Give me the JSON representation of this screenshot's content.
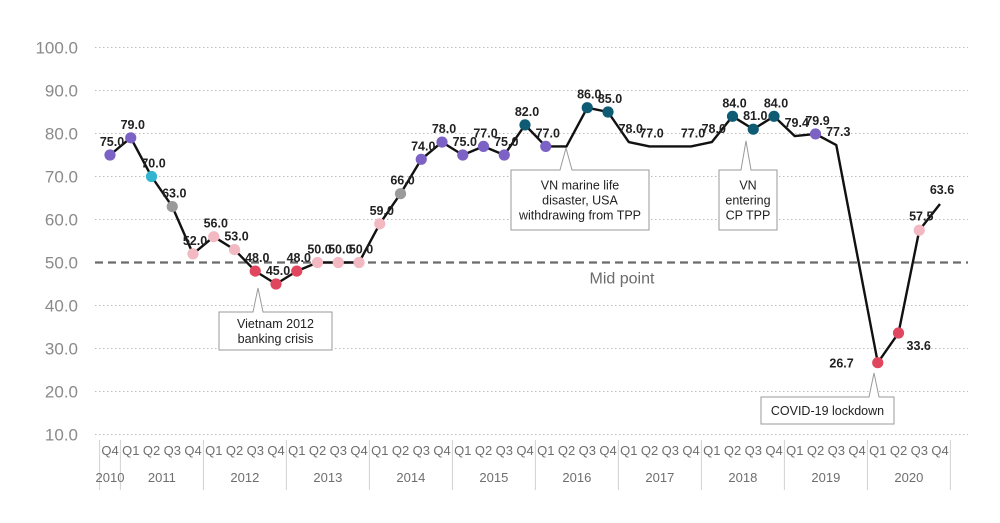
{
  "chart_data": {
    "type": "line",
    "ylim": [
      10,
      100
    ],
    "yticks": [
      "100.0",
      "90.0",
      "80.0",
      "70.0",
      "60.0",
      "50.0",
      "40.0",
      "30.0",
      "20.0",
      "10.0"
    ],
    "quarters": [
      "Q4",
      "Q1",
      "Q2",
      "Q3",
      "Q4",
      "Q1",
      "Q2",
      "Q3",
      "Q4",
      "Q1",
      "Q2",
      "Q3",
      "Q4",
      "Q1",
      "Q2",
      "Q3",
      "Q4",
      "Q1",
      "Q2",
      "Q3",
      "Q4",
      "Q1",
      "Q2",
      "Q3",
      "Q4",
      "Q1",
      "Q2",
      "Q3",
      "Q4",
      "Q1",
      "Q2",
      "Q3",
      "Q4",
      "Q1",
      "Q2",
      "Q3",
      "Q4",
      "Q1",
      "Q2",
      "Q3",
      "Q4"
    ],
    "years": [
      {
        "label": "2010",
        "start": 0,
        "end": 0
      },
      {
        "label": "2011",
        "start": 1,
        "end": 4
      },
      {
        "label": "2012",
        "start": 5,
        "end": 8
      },
      {
        "label": "2013",
        "start": 9,
        "end": 12
      },
      {
        "label": "2014",
        "start": 13,
        "end": 16
      },
      {
        "label": "2015",
        "start": 17,
        "end": 20
      },
      {
        "label": "2016",
        "start": 21,
        "end": 24
      },
      {
        "label": "2017",
        "start": 25,
        "end": 28
      },
      {
        "label": "2018",
        "start": 29,
        "end": 32
      },
      {
        "label": "2019",
        "start": 33,
        "end": 36
      },
      {
        "label": "2020",
        "start": 37,
        "end": 40
      }
    ],
    "values": [
      75.0,
      79.0,
      70.0,
      63.0,
      52.0,
      56.0,
      53.0,
      48.0,
      45.0,
      48.0,
      50.0,
      50.0,
      50.0,
      59.0,
      66.0,
      74.0,
      78.0,
      75.0,
      77.0,
      75.0,
      82.0,
      77.0,
      77.0,
      86.0,
      85.0,
      78.0,
      77.0,
      77.0,
      77.0,
      78.0,
      84.0,
      81.0,
      84.0,
      79.4,
      79.9,
      77.3,
      26.7,
      33.6,
      57.5,
      63.6
    ],
    "x_index": [
      0,
      1,
      2,
      3,
      4,
      5,
      6,
      7,
      8,
      9,
      10,
      11,
      12,
      13,
      14,
      15,
      16,
      17,
      18,
      19,
      20,
      21,
      22,
      23,
      24,
      25,
      26,
      27,
      28,
      29,
      30,
      31,
      32,
      33,
      34,
      35,
      37,
      38,
      39,
      40
    ],
    "labels": [
      "75.0",
      "79.0",
      "70.0",
      "63.0",
      "52.0",
      "56.0",
      "53.0",
      "48.0",
      "45.0",
      "48.0",
      "50.0",
      "50.0",
      "50.0",
      "59.0",
      "66.0",
      "74.0",
      "78.0",
      "75.0",
      "77.0",
      "75.0",
      "82.0",
      "77.0",
      "",
      "86.0",
      "85.0",
      "78.0",
      "77.0",
      "",
      "77.0",
      "78.0",
      "84.0",
      "81.0",
      "84.0",
      "79.4",
      "79.9",
      "77.3",
      "26.7",
      "33.6",
      "57.5",
      "63.6"
    ],
    "markers": [
      {
        "i": 0,
        "color": "#7b62c4"
      },
      {
        "i": 1,
        "color": "#7b62c4"
      },
      {
        "i": 2,
        "color": "#33b5d0"
      },
      {
        "i": 3,
        "color": "#9a9a9a"
      },
      {
        "i": 4,
        "color": "#f2b9c2"
      },
      {
        "i": 5,
        "color": "#f2b9c2"
      },
      {
        "i": 6,
        "color": "#f2b9c2"
      },
      {
        "i": 7,
        "color": "#e0475f"
      },
      {
        "i": 8,
        "color": "#e0475f"
      },
      {
        "i": 9,
        "color": "#e0475f"
      },
      {
        "i": 10,
        "color": "#f2b9c2"
      },
      {
        "i": 11,
        "color": "#f2b9c2"
      },
      {
        "i": 12,
        "color": "#f2b9c2"
      },
      {
        "i": 13,
        "color": "#f2b9c2"
      },
      {
        "i": 14,
        "color": "#9a9a9a"
      },
      {
        "i": 15,
        "color": "#7b62c4"
      },
      {
        "i": 16,
        "color": "#7b62c4"
      },
      {
        "i": 17,
        "color": "#7b62c4"
      },
      {
        "i": 18,
        "color": "#7b62c4"
      },
      {
        "i": 19,
        "color": "#7b62c4"
      },
      {
        "i": 20,
        "color": "#0f5b73"
      },
      {
        "i": 21,
        "color": "#7b62c4"
      },
      {
        "i": 23,
        "color": "#0f5b73"
      },
      {
        "i": 24,
        "color": "#0f5b73"
      },
      {
        "i": 30,
        "color": "#0f5b73"
      },
      {
        "i": 31,
        "color": "#0f5b73"
      },
      {
        "i": 32,
        "color": "#0f5b73"
      },
      {
        "i": 34,
        "color": "#7b62c4"
      },
      {
        "i": 36,
        "color": "#e0475f"
      },
      {
        "i": 37,
        "color": "#e0475f"
      },
      {
        "i": 38,
        "color": "#f2b9c2"
      }
    ],
    "midpoint": {
      "value": 50,
      "label": "Mid point"
    },
    "annotations": [
      {
        "name": "annotation-banking-crisis",
        "lines": [
          "Vietnam 2012",
          "banking crisis"
        ]
      },
      {
        "name": "annotation-marine-disaster",
        "lines": [
          "VN marine life",
          "disaster, USA",
          "withdrawing from TPP"
        ]
      },
      {
        "name": "annotation-cptpp",
        "lines": [
          "VN",
          "entering",
          "CP TPP"
        ]
      },
      {
        "name": "annotation-covid",
        "lines": [
          "COVID-19 lockdown"
        ]
      }
    ],
    "grid": true,
    "line_color": "#111111"
  }
}
